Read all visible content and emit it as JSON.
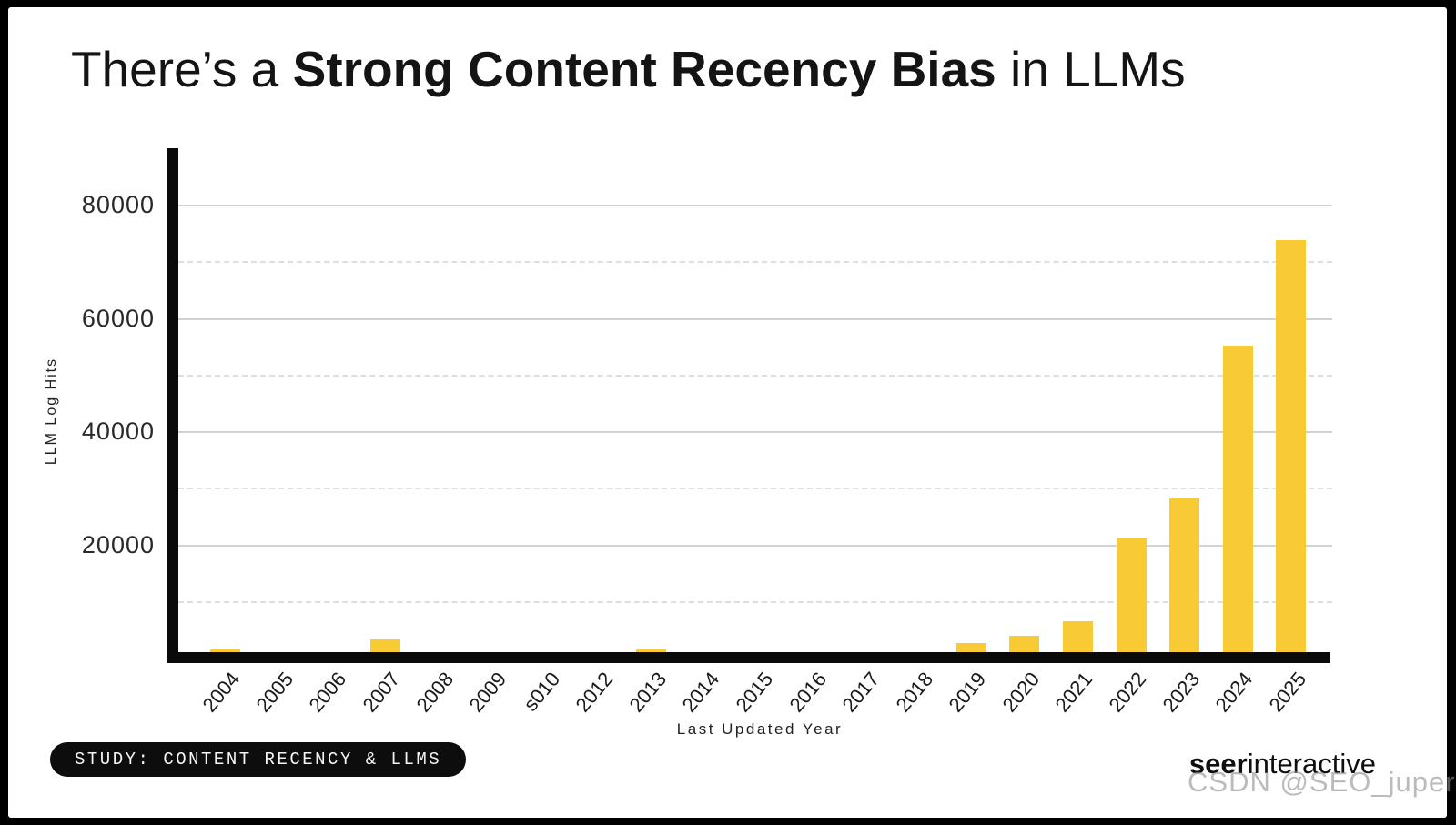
{
  "title": {
    "pre": "There’s a ",
    "bold": "Strong Content Recency Bias",
    "post": " in LLMs"
  },
  "chart_data": {
    "type": "bar",
    "title": "There’s a Strong Content Recency Bias in LLMs",
    "xlabel": "Last Updated Year",
    "ylabel": "LLM Log Hits",
    "categories": [
      "2004",
      "2005",
      "2006",
      "2007",
      "2008",
      "2009",
      "s010",
      "2012",
      "2013",
      "2014",
      "2015",
      "2016",
      "2017",
      "2018",
      "2019",
      "2020",
      "2021",
      "2022",
      "2023",
      "2024",
      "2025"
    ],
    "values": [
      1500,
      800,
      800,
      3200,
      0,
      0,
      0,
      0,
      1500,
      0,
      0,
      0,
      0,
      0,
      2600,
      3800,
      6500,
      21000,
      28200,
      55200,
      73800
    ],
    "ylim": [
      0,
      90000
    ],
    "ytick_values": [
      20000,
      40000,
      60000,
      80000
    ],
    "grid_solid_values": [
      20000,
      40000,
      60000,
      80000
    ],
    "grid_dashed_values": [
      10000,
      30000,
      50000,
      70000
    ],
    "bar_color": "#F8CA36",
    "grid": true,
    "legend": false
  },
  "footer": {
    "study_label": "STUDY: CONTENT RECENCY & LLMS",
    "brand_bold": "seer",
    "brand_regular": "interactive",
    "watermark": "CSDN @SEO_juper"
  },
  "colors": {
    "frame": "#000000",
    "card_background": "#ffffff",
    "bar": "#F8CA36",
    "axis": "#0a0a0a",
    "grid_solid": "#d2d2d2",
    "grid_dashed": "#dedede",
    "title_text": "#141414",
    "watermark_text": "#8e8e8e"
  }
}
